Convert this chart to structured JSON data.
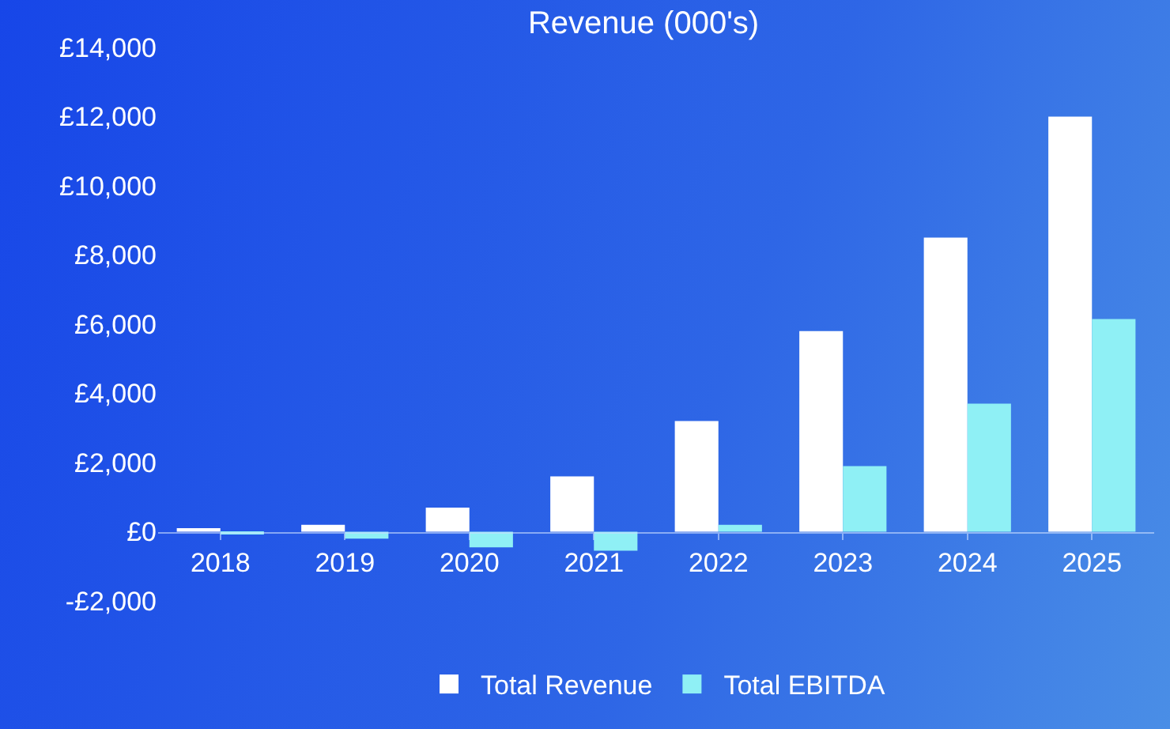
{
  "chart_data": {
    "type": "bar",
    "title": "Revenue (000's)",
    "categories": [
      "2018",
      "2019",
      "2020",
      "2021",
      "2022",
      "2023",
      "2024",
      "2025"
    ],
    "series": [
      {
        "name": "Total Revenue",
        "color": "#ffffff",
        "values": [
          100,
          200,
          700,
          1600,
          3200,
          5800,
          8500,
          12000
        ]
      },
      {
        "name": "Total EBITDA",
        "color": "#8ff0f5",
        "values": [
          -50,
          -200,
          -450,
          -550,
          200,
          1900,
          3700,
          6150
        ]
      }
    ],
    "ylim": [
      -2000,
      14000
    ],
    "yticks": [
      {
        "value": -2000,
        "label": "-£2,000"
      },
      {
        "value": 0,
        "label": "£0"
      },
      {
        "value": 2000,
        "label": "£2,000"
      },
      {
        "value": 4000,
        "label": "£4,000"
      },
      {
        "value": 6000,
        "label": "£6,000"
      },
      {
        "value": 8000,
        "label": "£8,000"
      },
      {
        "value": 10000,
        "label": "£10,000"
      },
      {
        "value": 12000,
        "label": "£12,000"
      },
      {
        "value": 14000,
        "label": "£14,000"
      }
    ],
    "grid": false,
    "legend": "bottom"
  }
}
